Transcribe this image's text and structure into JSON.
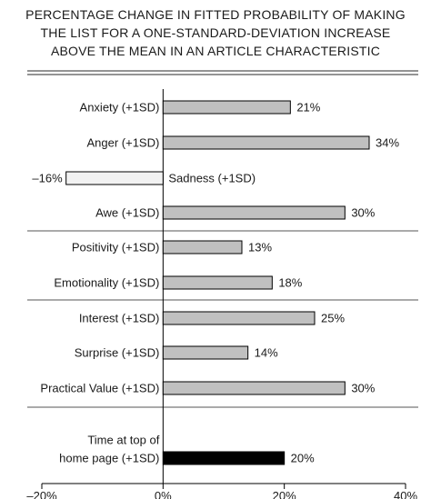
{
  "title_lines": [
    "PERCENTAGE CHANGE IN FITTED PROBABILITY OF MAKING",
    "THE LIST FOR A ONE-STANDARD-DEVIATION INCREASE",
    "ABOVE THE MEAN IN AN ARTICLE CHARACTERISTIC"
  ],
  "chart_data": {
    "type": "bar",
    "orientation": "horizontal",
    "categories": [
      "Anxiety (+1SD)",
      "Anger (+1SD)",
      "Sadness (+1SD)",
      "Awe (+1SD)",
      "Positivity (+1SD)",
      "Emotionality (+1SD)",
      "Interest (+1SD)",
      "Surprise (+1SD)",
      "Practical Value (+1SD)",
      "Time at top of home page (+1SD)"
    ],
    "category_lines": {
      "9": [
        "Time at top of",
        "home page (+1SD)"
      ]
    },
    "values": [
      21,
      34,
      -16,
      30,
      13,
      18,
      25,
      14,
      30,
      20
    ],
    "value_labels": [
      "21%",
      "34%",
      "–16%",
      "30%",
      "13%",
      "18%",
      "25%",
      "14%",
      "30%",
      "20%"
    ],
    "groups": [
      [
        0,
        1,
        2,
        3
      ],
      [
        4,
        5
      ],
      [
        6,
        7,
        8
      ],
      [
        9
      ]
    ],
    "xlim": [
      -20,
      40
    ],
    "x_ticks": [
      -20,
      0,
      20,
      40
    ],
    "x_tick_labels": [
      "–20%",
      "0%",
      "20%",
      "40%"
    ],
    "grid": false,
    "colors": {
      "positive": "#c0c0c0",
      "negative": "#f2f2f2",
      "highlight": "#000000",
      "highlight_index": 9,
      "stroke": "#000000",
      "divider": "#555555"
    }
  }
}
